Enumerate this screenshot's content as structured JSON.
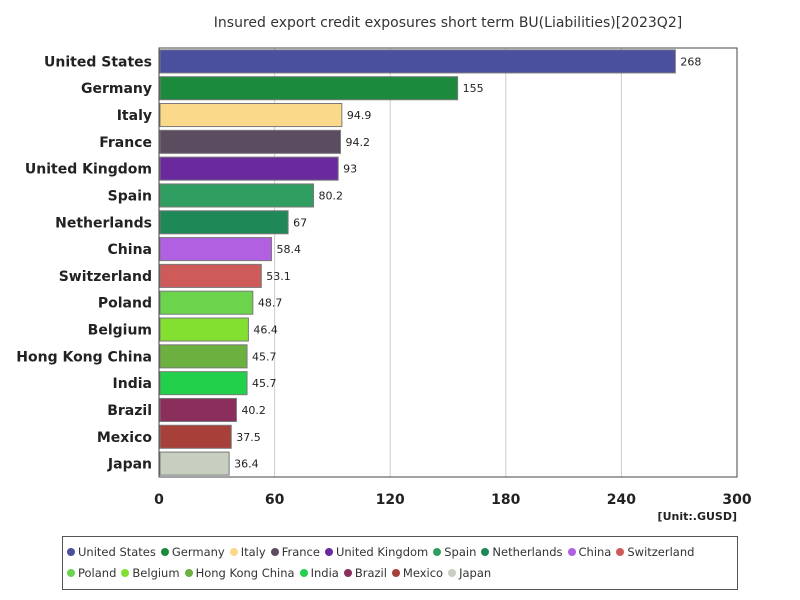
{
  "chart_data": {
    "type": "bar",
    "orientation": "horizontal",
    "title": "Insured export credit exposures short term BU(Liabilities)[2023Q2]",
    "unit": "[Unit:.GUSD]",
    "categories": [
      "United States",
      "Germany",
      "Italy",
      "France",
      "United Kingdom",
      "Spain",
      "Netherlands",
      "China",
      "Switzerland",
      "Poland",
      "Belgium",
      "Hong Kong China",
      "India",
      "Brazil",
      "Mexico",
      "Japan"
    ],
    "values": [
      268,
      155,
      94.9,
      94.2,
      93,
      80.2,
      67,
      58.4,
      53.1,
      48.7,
      46.4,
      45.7,
      45.7,
      40.2,
      37.5,
      36.4
    ],
    "value_labels": [
      "268",
      "155",
      "94.9",
      "94.2",
      "93",
      "80.2",
      "67",
      "58.4",
      "53.1",
      "48.7",
      "46.4",
      "45.7",
      "45.7",
      "40.2",
      "37.5",
      "36.4"
    ],
    "colors": [
      "#4a4f9e",
      "#1c8a3c",
      "#fbd98a",
      "#5b4c60",
      "#6a2a9e",
      "#2f9e60",
      "#1e8856",
      "#b060e0",
      "#cf5a5a",
      "#6cd44c",
      "#84e030",
      "#6cb040",
      "#22d04c",
      "#8a2e5c",
      "#a8403a",
      "#c8cec0"
    ],
    "xlim": [
      0,
      300
    ],
    "xticks": [
      "0",
      "60",
      "120",
      "180",
      "240",
      "300"
    ],
    "grid": true,
    "legend_position": "bottom"
  }
}
